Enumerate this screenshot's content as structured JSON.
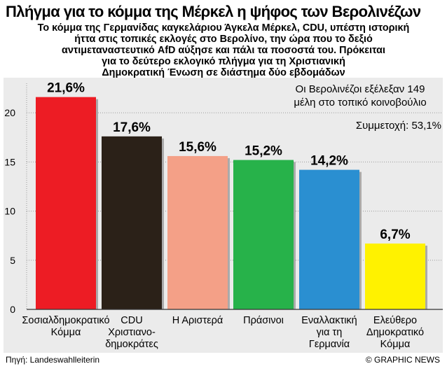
{
  "title": "Πλήγμα για το κόμμα της Μέρκελ η ψήφος των Βερολινέζων",
  "subtitle_lines": [
    "Το κόμμα της Γερμανίδας καγκελάριου Άγκελα Μέρκελ, CDU, υπέστη ιστορική",
    "ήττα στις τοπικές εκλογές στο Βερολίνο, την ώρα που το δεξιό",
    "αντιμεταναστευτικό AfD αύξησε και πάλι τα ποσοστά του. Πρόκειται",
    "για το δεύτερο εκλογικό πλήγμα για τη Χριστιανική",
    "Δημοκρατική Ένωση σε διάστημα δύο εβδομάδων"
  ],
  "notes": {
    "seats_line1": "Οι Βερολινέζοι εξέλεξαν 149",
    "seats_line2": "μέλη στο τοπικό κοινοβούλιο",
    "turnout": "Συμμετοχή: 53,1%"
  },
  "source": "Πηγή: Landeswahlleiterin",
  "credit": "© GRAPHIC NEWS",
  "chart_data": {
    "type": "bar",
    "ylim": [
      0,
      23
    ],
    "yticks": [
      0,
      5,
      10,
      15,
      20
    ],
    "bars": [
      {
        "label_lines": [
          "Σοσιαλδημοκρατικό",
          "Κόμμα"
        ],
        "value": 21.6,
        "value_label": "21,6%",
        "color": "#ed1c24"
      },
      {
        "label_lines": [
          "CDU",
          "Χριστιανο-",
          "δημοκράτες"
        ],
        "value": 17.6,
        "value_label": "17,6%",
        "color": "#2b2118"
      },
      {
        "label_lines": [
          "Η Αριστερά"
        ],
        "value": 15.6,
        "value_label": "15,6%",
        "color": "#f4a087"
      },
      {
        "label_lines": [
          "Πράσινοι"
        ],
        "value": 15.2,
        "value_label": "15,2%",
        "color": "#27b24a"
      },
      {
        "label_lines": [
          "Εναλλακτική",
          "για τη",
          "Γερμανία"
        ],
        "value": 14.2,
        "value_label": "14,2%",
        "color": "#2a8fd1"
      },
      {
        "label_lines": [
          "Ελεύθερο",
          "Δημοκρατικό",
          "Κόμμα"
        ],
        "value": 6.7,
        "value_label": "6,7%",
        "color": "#fff200"
      }
    ]
  }
}
